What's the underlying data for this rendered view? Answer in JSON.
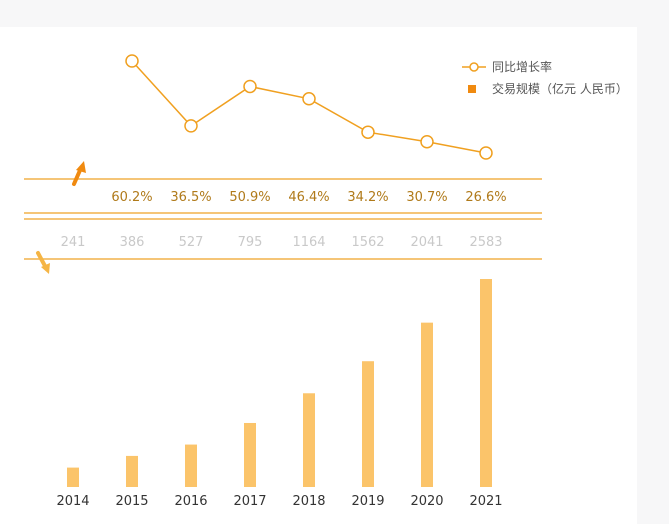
{
  "legend": {
    "rate_label": "同比增长率",
    "volume_label": "交易规模（亿元 人民币）"
  },
  "colors": {
    "line": "#f0a020",
    "bar": "#fbc46a",
    "divider": "#f2b24a",
    "arrow_up": "#f08a10",
    "arrow_down": "#f5b545"
  },
  "chart_data": {
    "type": "bar",
    "categories": [
      "2014",
      "2015",
      "2016",
      "2017",
      "2018",
      "2019",
      "2020",
      "2021"
    ],
    "series": [
      {
        "name": "交易规模（亿元 人民币）",
        "type": "bar",
        "values": [
          241,
          386,
          527,
          795,
          1164,
          1562,
          2041,
          2583
        ]
      },
      {
        "name": "同比增长率",
        "type": "line",
        "values": [
          null,
          60.2,
          36.5,
          50.9,
          46.4,
          34.2,
          30.7,
          26.6
        ]
      }
    ],
    "rate_labels": [
      "",
      "60.2%",
      "36.5%",
      "50.9%",
      "46.4%",
      "34.2%",
      "30.7%",
      "26.6%"
    ],
    "volume_labels": [
      "241",
      "386",
      "527",
      "795",
      "1164",
      "1562",
      "2041",
      "2583"
    ]
  }
}
